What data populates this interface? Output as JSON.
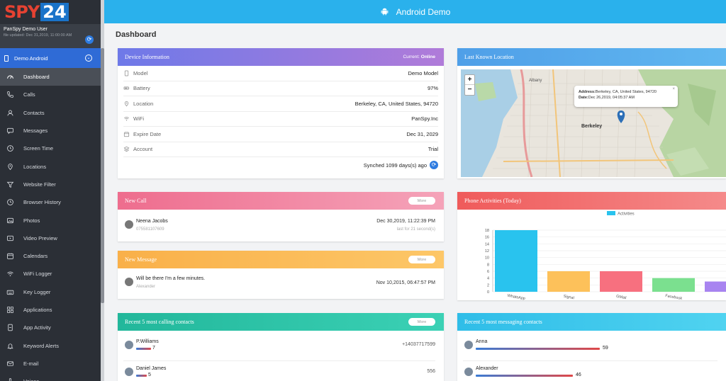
{
  "brand": {
    "logo_left": "SPY",
    "logo_right": "24"
  },
  "user": {
    "name": "PanSpy Demo User",
    "updated": "file updated: Dec 31,2019, 11:00:00 AM"
  },
  "device": {
    "name": "Demo Android"
  },
  "nav": [
    {
      "label": "Dashboard",
      "icon": "dashboard-icon",
      "active": true
    },
    {
      "label": "Calls",
      "icon": "phone-icon"
    },
    {
      "label": "Contacts",
      "icon": "person-icon"
    },
    {
      "label": "Messages",
      "icon": "message-icon"
    },
    {
      "label": "Screen Time",
      "icon": "clock-icon"
    },
    {
      "label": "Locations",
      "icon": "location-pin-icon"
    },
    {
      "label": "Website Filter",
      "icon": "filter-icon"
    },
    {
      "label": "Browser History",
      "icon": "history-icon"
    },
    {
      "label": "Photos",
      "icon": "photo-icon"
    },
    {
      "label": "Video Preview",
      "icon": "video-icon"
    },
    {
      "label": "Calendars",
      "icon": "calendar-icon"
    },
    {
      "label": "WiFi Logger",
      "icon": "wifi-icon"
    },
    {
      "label": "Key Logger",
      "icon": "keyboard-icon"
    },
    {
      "label": "Applications",
      "icon": "apps-grid-icon"
    },
    {
      "label": "App Activity",
      "icon": "app-activity-icon"
    },
    {
      "label": "Keyword Alerts",
      "icon": "bell-icon"
    },
    {
      "label": "E-mail",
      "icon": "email-icon"
    },
    {
      "label": "Voices",
      "icon": "voice-icon"
    }
  ],
  "header": {
    "title": "Android Demo"
  },
  "page": {
    "title": "Dashboard"
  },
  "device_info": {
    "title": "Device Information",
    "status_label": "Current:",
    "status_value": "Online",
    "rows": [
      {
        "label": "Model",
        "value": "Demo Model",
        "icon": "phone-outline-icon"
      },
      {
        "label": "Battery",
        "value": "97%",
        "icon": "battery-icon"
      },
      {
        "label": "Location",
        "value": "Berkeley, CA, United States, 94720",
        "icon": "location-pin-icon"
      },
      {
        "label": "WiFi",
        "value": "PanSpy.Inc",
        "icon": "wifi-icon"
      },
      {
        "label": "Expire Date",
        "value": "Dec 31, 2029",
        "icon": "calendar-icon"
      },
      {
        "label": "Account",
        "value": "Trial",
        "icon": "layers-icon"
      }
    ],
    "synced": "Synched 1099 days(s) ago"
  },
  "location": {
    "title": "Last Known Location",
    "address_label": "Address:",
    "address": "Berkeley, CA, United States, 94720",
    "date_label": "Date:",
    "date": "Dec 26,2019, 04:05:37 AM",
    "city": "Berkeley",
    "place2": "Albany",
    "zoom_in": "+",
    "zoom_out": "−"
  },
  "new_call": {
    "title": "New Call",
    "more": "More",
    "name": "Neena Jacobs",
    "number": "07558110760​9",
    "time": "Dec 30,2019, 11:22:39 PM",
    "duration": "last for 21 second(s)"
  },
  "new_message": {
    "title": "New Message",
    "more": "More",
    "text": "Will be there I'm a few minutes.",
    "sender": "Alexander",
    "time": "Nov 10,2015, 06:47:57 PM"
  },
  "activities": {
    "title": "Phone Activities (Today)",
    "legend": "Activities"
  },
  "chart_data": {
    "type": "bar",
    "categories": [
      "WhatsApp",
      "Signal",
      "GMail",
      "Facebook",
      ""
    ],
    "values": [
      18,
      6,
      6,
      4,
      3
    ],
    "colors": [
      "#29c3ee",
      "#fdc15a",
      "#f7707f",
      "#7be08f",
      "#a884f0"
    ],
    "legend": "Activities",
    "ylim": [
      0,
      18
    ],
    "yticks": [
      0,
      2,
      4,
      6,
      8,
      10,
      12,
      14,
      16,
      18
    ]
  },
  "recent_calls": {
    "title": "Recent 5 most calling contacts",
    "more": "More",
    "items": [
      {
        "name": "P.Williams",
        "count": "7",
        "number": "+14037717599",
        "bar": 0.14
      },
      {
        "name": "Daniel James",
        "count": "5",
        "number": "556",
        "bar": 0.1
      }
    ]
  },
  "recent_messages": {
    "title": "Recent 5 most messaging contacts",
    "items": [
      {
        "name": "Anna",
        "count": "59",
        "bar": 1.0
      },
      {
        "name": "Alexander",
        "count": "46",
        "bar": 0.78
      }
    ]
  }
}
